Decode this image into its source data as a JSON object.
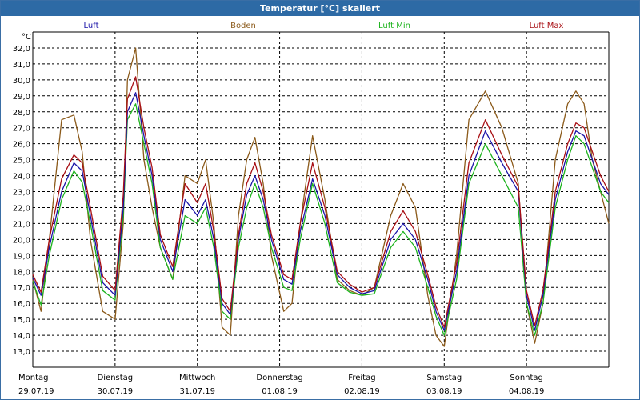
{
  "window": {
    "title": "Temperatur [°C] skaliert"
  },
  "colors": {
    "luft": "#1a13a8",
    "boden": "#8b5a1a",
    "luft_min": "#1db31d",
    "luft_max": "#a80f14",
    "grid": "#000000"
  },
  "chart_data": {
    "type": "line",
    "title": "Temperatur [°C] skaliert",
    "ylabel": "°C",
    "ylim": [
      12.0,
      33.0
    ],
    "yticks": [
      "13,0",
      "14,0",
      "15,0",
      "16,0",
      "17,0",
      "18,0",
      "19,0",
      "20,0",
      "21,0",
      "22,0",
      "23,0",
      "24,0",
      "25,0",
      "26,0",
      "27,0",
      "28,0",
      "29,0",
      "30,0",
      "31,0",
      "32,0"
    ],
    "ytick_values": [
      13,
      14,
      15,
      16,
      17,
      18,
      19,
      20,
      21,
      22,
      23,
      24,
      25,
      26,
      27,
      28,
      29,
      30,
      31,
      32
    ],
    "xlim": [
      0,
      7
    ],
    "days": [
      {
        "weekday": "Montag",
        "date": "29.07.19"
      },
      {
        "weekday": "Dienstag",
        "date": "30.07.19"
      },
      {
        "weekday": "Mittwoch",
        "date": "31.07.19"
      },
      {
        "weekday": "Donnerstag",
        "date": "01.08.19"
      },
      {
        "weekday": "Freitag",
        "date": "02.08.19"
      },
      {
        "weekday": "Samstag",
        "date": "03.08.19"
      },
      {
        "weekday": "Sonntag",
        "date": "04.08.19"
      }
    ],
    "grid": true,
    "legend_position": "top",
    "x": [
      0,
      0.1,
      0.2,
      0.35,
      0.5,
      0.6,
      0.7,
      0.85,
      1.0,
      1.1,
      1.15,
      1.25,
      1.35,
      1.45,
      1.55,
      1.7,
      1.85,
      2.0,
      2.1,
      2.2,
      2.3,
      2.4,
      2.5,
      2.6,
      2.7,
      2.8,
      2.9,
      3.05,
      3.15,
      3.25,
      3.4,
      3.55,
      3.7,
      3.85,
      4.0,
      4.15,
      4.35,
      4.5,
      4.65,
      4.8,
      4.9,
      5.0,
      5.15,
      5.3,
      5.5,
      5.7,
      5.9,
      6.0,
      6.1,
      6.2,
      6.35,
      6.5,
      6.6,
      6.7,
      6.8,
      6.9,
      7.0
    ],
    "series": [
      {
        "name": "Luft",
        "key": "luft",
        "values": [
          17.6,
          16.5,
          19.5,
          23.0,
          24.8,
          24.3,
          21.5,
          17.3,
          16.5,
          22.0,
          28.0,
          29.2,
          26.5,
          24.0,
          20.0,
          18.0,
          22.5,
          21.5,
          22.5,
          20.0,
          16.0,
          15.3,
          20.0,
          22.8,
          24.0,
          22.5,
          20.0,
          17.5,
          17.2,
          20.5,
          23.8,
          21.5,
          17.8,
          17.0,
          16.6,
          16.8,
          20.0,
          21.0,
          20.0,
          17.5,
          15.5,
          14.3,
          18.0,
          24.0,
          26.8,
          24.8,
          23.0,
          16.5,
          14.3,
          16.5,
          22.5,
          25.5,
          26.8,
          26.5,
          25.0,
          23.5,
          22.8
        ]
      },
      {
        "name": "Boden",
        "key": "boden",
        "values": [
          17.5,
          15.5,
          20.0,
          27.5,
          27.8,
          25.5,
          20.0,
          15.5,
          15.0,
          21.0,
          30.0,
          32.0,
          25.0,
          22.0,
          19.5,
          17.5,
          24.0,
          23.5,
          25.0,
          21.0,
          14.5,
          14.0,
          21.5,
          25.0,
          26.4,
          23.5,
          19.0,
          15.5,
          16.0,
          21.0,
          26.5,
          22.5,
          17.5,
          16.8,
          16.5,
          17.0,
          21.5,
          23.5,
          22.0,
          16.5,
          14.0,
          13.3,
          19.0,
          27.5,
          29.3,
          27.0,
          23.5,
          16.0,
          13.5,
          16.0,
          25.0,
          28.5,
          29.3,
          28.5,
          25.0,
          23.0,
          21.0
        ]
      },
      {
        "name": "Luft Min",
        "key": "luft_min",
        "values": [
          17.4,
          15.9,
          19.0,
          22.5,
          24.3,
          23.6,
          21.0,
          16.8,
          16.2,
          21.5,
          27.5,
          28.5,
          26.0,
          23.5,
          19.5,
          17.5,
          21.5,
          21.0,
          22.0,
          19.5,
          15.5,
          15.0,
          19.5,
          22.0,
          23.5,
          22.0,
          19.5,
          17.0,
          16.8,
          20.0,
          23.5,
          21.0,
          17.3,
          16.7,
          16.5,
          16.6,
          19.5,
          20.5,
          19.5,
          17.0,
          15.2,
          14.0,
          17.5,
          23.5,
          26.0,
          24.0,
          22.0,
          16.0,
          14.0,
          16.0,
          22.0,
          25.0,
          26.5,
          26.0,
          24.5,
          23.0,
          22.3
        ]
      },
      {
        "name": "Luft Max",
        "key": "luft_max",
        "values": [
          17.8,
          16.7,
          20.0,
          23.8,
          25.3,
          24.8,
          22.0,
          17.7,
          16.8,
          22.8,
          28.8,
          30.2,
          27.0,
          24.5,
          20.3,
          18.3,
          23.5,
          22.3,
          23.5,
          20.5,
          16.3,
          15.5,
          20.3,
          23.5,
          24.8,
          23.0,
          20.3,
          17.8,
          17.5,
          21.0,
          24.8,
          22.0,
          18.0,
          17.2,
          16.7,
          17.0,
          20.5,
          21.8,
          20.5,
          17.8,
          15.8,
          14.5,
          18.5,
          24.8,
          27.5,
          25.3,
          23.3,
          16.8,
          14.6,
          16.8,
          23.0,
          26.0,
          27.3,
          27.0,
          25.5,
          24.0,
          23.0
        ]
      }
    ]
  }
}
